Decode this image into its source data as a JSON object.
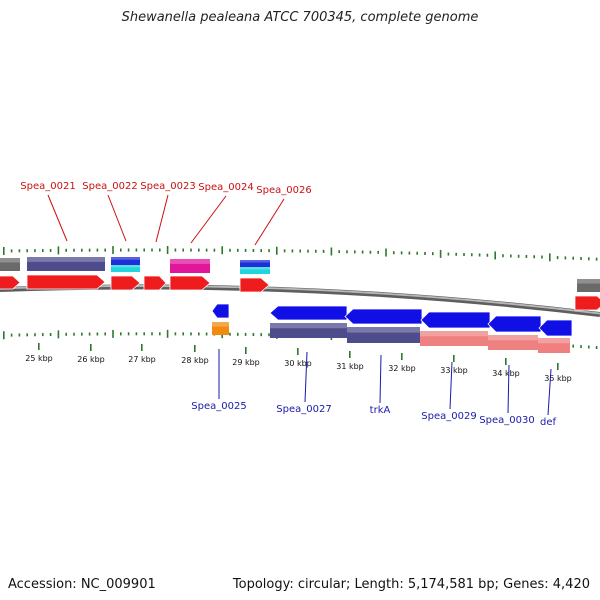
{
  "title": "Shewanella pealeana ATCC 700345, complete genome",
  "footer": {
    "accession": "Accession: NC_009901",
    "stats": "Topology: circular; Length: 5,174,581 bp; Genes: 4,420"
  },
  "colors": {
    "label_top": "#cc1010",
    "label_bottom": "#1a1aaa",
    "tick": "#2a7a2a",
    "backbone": "#8a8a8a",
    "cds_forward": "#ee1c1c",
    "cds_reverse": "#1010e6",
    "cog_purple": "#4e4c8c",
    "cog_gray": "#6a6a6a",
    "cog_blue": "#1e2ed8",
    "cog_cyan": "#22d4dc",
    "cog_magenta": "#e2169a",
    "cog_orange": "#f28a10",
    "cog_salmon": "#ee8080"
  },
  "ruler": [
    "25 kbp",
    "26 kbp",
    "27 kbp",
    "28 kbp",
    "29 kbp",
    "30 kbp",
    "31 kbp",
    "32 kbp",
    "33 kbp",
    "34 kbp",
    "35 kbp"
  ],
  "genes_forward": [
    "Spea_0021",
    "Spea_0022",
    "Spea_0023",
    "Spea_0024",
    "Spea_0026"
  ],
  "genes_reverse": [
    "Spea_0025",
    "Spea_0027",
    "trkA",
    "Spea_0029",
    "Spea_0030",
    "def"
  ]
}
